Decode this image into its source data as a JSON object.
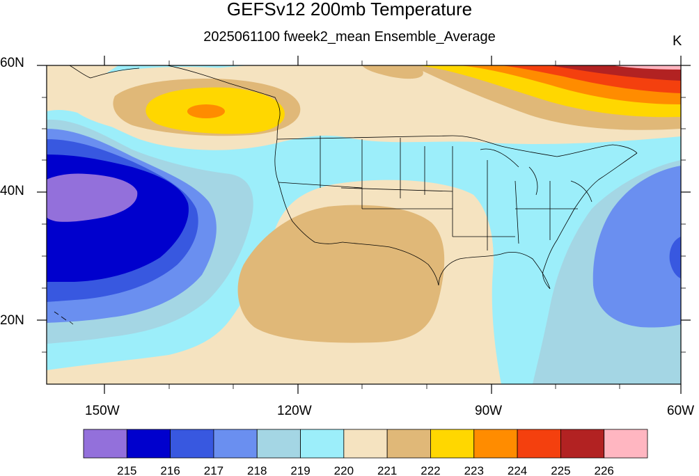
{
  "title": "GEFSv12 200mb Temperature",
  "subtitle": "2025061100 fweek2_mean Ensemble_Average",
  "units": "K",
  "lat_labels": [
    "60N",
    "40N",
    "20N"
  ],
  "lon_labels": [
    "150W",
    "120W",
    "90W",
    "60W"
  ],
  "colorbar": {
    "colors": [
      "#9370db",
      "#0000cd",
      "#3858e0",
      "#6a8ff0",
      "#a4d6e4",
      "#9ceefa",
      "#f5e3c0",
      "#e0b878",
      "#ffd700",
      "#ff8c00",
      "#f4400e",
      "#b22222",
      "#ffb6c1"
    ],
    "labels": [
      "215",
      "216",
      "217",
      "218",
      "219",
      "220",
      "221",
      "222",
      "223",
      "224",
      "225",
      "226"
    ]
  }
}
